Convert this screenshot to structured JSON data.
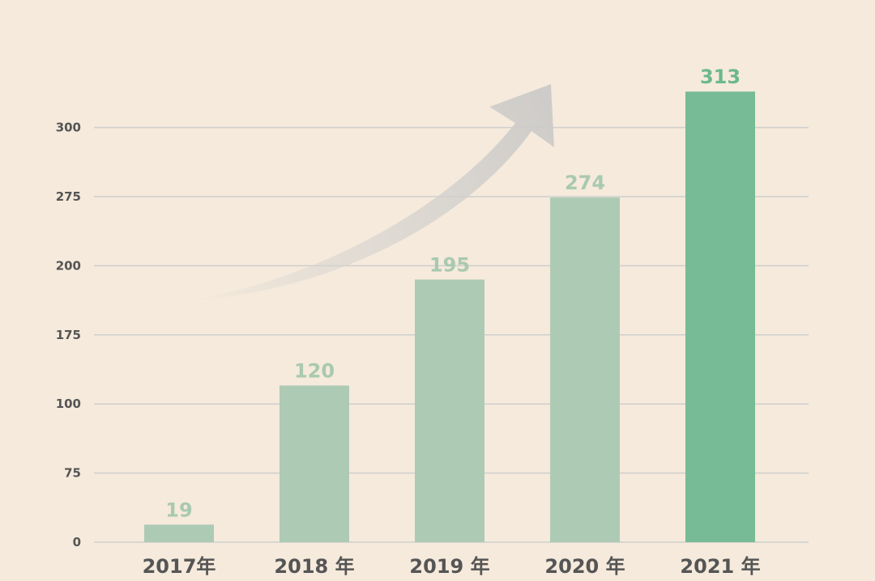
{
  "chart_data": {
    "type": "bar",
    "categories": [
      "2017年",
      "2018 年",
      "2019 年",
      "2020 年",
      "2021 年"
    ],
    "values": [
      19,
      120,
      195,
      274,
      313
    ],
    "data_labels": [
      "19",
      "120",
      "195",
      "274",
      "313"
    ],
    "y_ticks": [
      0,
      75,
      100,
      175,
      200,
      275,
      300
    ],
    "y_tick_labels": [
      "0",
      "75",
      "100",
      "175",
      "200",
      "275",
      "300"
    ],
    "title": "",
    "xlabel": "",
    "ylabel": "",
    "grid": true,
    "legend": "none",
    "trend_arrow": true,
    "colors": {
      "background": "#f5eadc",
      "bar": "#adcab5",
      "bar_highlight": "#77bb96",
      "label": "#a9c9b0",
      "label_highlight": "#6cb88c",
      "grid": "#cfcfcc",
      "text": "#555555",
      "arrow": "#cccccc"
    }
  }
}
